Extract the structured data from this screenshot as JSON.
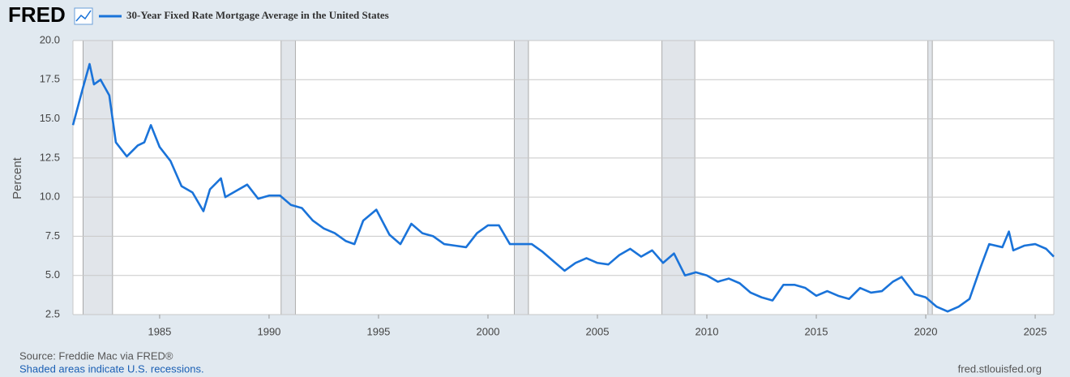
{
  "chart_data": {
    "type": "line",
    "logo": "FRED",
    "ylabel": "Percent",
    "source": "Source: Freddie Mac via FRED®",
    "note": "Shaded areas indicate U.S. recessions.",
    "site": "fred.stlouisfed.org",
    "grid": true,
    "recession_color": "#e1e5ea",
    "recessions": [
      [
        1981.5,
        1982.85
      ],
      [
        1990.55,
        1991.2
      ],
      [
        2001.2,
        2001.85
      ],
      [
        2007.95,
        2009.45
      ],
      [
        2020.1,
        2020.3
      ]
    ],
    "xlim": [
      1981.04,
      2025.85
    ],
    "xticks": [
      1985,
      1990,
      1995,
      2000,
      2005,
      2010,
      2015,
      2020,
      2025
    ],
    "ylim": [
      2.5,
      20
    ],
    "yticks": [
      2.5,
      {
        "value": 5,
        "label": "5.0"
      },
      7.5,
      {
        "value": 10,
        "label": "10.0"
      },
      12.5,
      {
        "value": 15,
        "label": "15.0"
      },
      17.5,
      {
        "value": 20,
        "label": "20.0"
      }
    ],
    "x": [
      1981.04,
      1981.5,
      1981.8,
      1982.0,
      1982.3,
      1982.7,
      1983.0,
      1983.5,
      1984.0,
      1984.3,
      1984.6,
      1985.0,
      1985.5,
      1986.0,
      1986.5,
      1987.0,
      1987.3,
      1987.8,
      1988.0,
      1988.5,
      1989.0,
      1989.5,
      1990.0,
      1990.5,
      1991.0,
      1991.5,
      1992.0,
      1992.5,
      1993.0,
      1993.5,
      1993.9,
      1994.3,
      1994.9,
      1995.5,
      1996.0,
      1996.5,
      1997.0,
      1997.5,
      1998.0,
      1998.5,
      1999.0,
      1999.5,
      2000.0,
      2000.5,
      2001.0,
      2001.5,
      2002.0,
      2002.5,
      2003.0,
      2003.5,
      2004.0,
      2004.5,
      2005.0,
      2005.5,
      2006.0,
      2006.5,
      2007.0,
      2007.5,
      2008.0,
      2008.5,
      2009.0,
      2009.5,
      2010.0,
      2010.5,
      2011.0,
      2011.5,
      2012.0,
      2012.5,
      2013.0,
      2013.5,
      2014.0,
      2014.5,
      2015.0,
      2015.5,
      2016.0,
      2016.5,
      2017.0,
      2017.5,
      2018.0,
      2018.5,
      2018.9,
      2019.5,
      2020.0,
      2020.5,
      2021.0,
      2021.5,
      2022.0,
      2022.5,
      2022.9,
      2023.5,
      2023.8,
      2024.0,
      2024.5,
      2025.0,
      2025.5,
      2025.85
    ],
    "series": [
      {
        "name": "30-Year Fixed Rate Mortgage Average in the United States",
        "color": "#1a73d9",
        "values": [
          14.6,
          17.0,
          18.5,
          17.2,
          17.5,
          16.5,
          13.5,
          12.6,
          13.3,
          13.5,
          14.6,
          13.2,
          12.3,
          10.7,
          10.3,
          9.1,
          10.5,
          11.2,
          10.0,
          10.4,
          10.8,
          9.9,
          10.1,
          10.1,
          9.5,
          9.3,
          8.5,
          8.0,
          7.7,
          7.2,
          7.0,
          8.5,
          9.2,
          7.6,
          7.0,
          8.3,
          7.7,
          7.5,
          7.0,
          6.9,
          6.8,
          7.7,
          8.2,
          8.2,
          7.0,
          7.0,
          7.0,
          6.5,
          5.9,
          5.3,
          5.8,
          6.1,
          5.8,
          5.7,
          6.3,
          6.7,
          6.2,
          6.6,
          5.8,
          6.4,
          5.0,
          5.2,
          5.0,
          4.6,
          4.8,
          4.5,
          3.9,
          3.6,
          3.4,
          4.4,
          4.4,
          4.2,
          3.7,
          4.0,
          3.7,
          3.5,
          4.2,
          3.9,
          4.0,
          4.6,
          4.9,
          3.8,
          3.6,
          3.0,
          2.7,
          3.0,
          3.5,
          5.5,
          7.0,
          6.8,
          7.8,
          6.6,
          6.9,
          7.0,
          6.7,
          6.2
        ]
      }
    ]
  }
}
